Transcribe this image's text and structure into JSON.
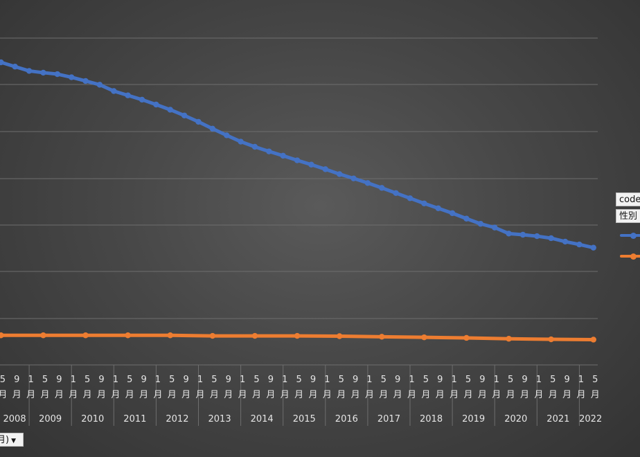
{
  "filter_buttons": {
    "code": "code",
    "sex": "性別",
    "date": "月)",
    "dropdown_icon": "chevron-down-icon"
  },
  "colors": {
    "series_blue": "#4472c4",
    "series_orange": "#ed7d31"
  },
  "chart_data": {
    "type": "line",
    "title": "",
    "xlabel": "",
    "ylabel": "",
    "grid": true,
    "x_axis": {
      "years": [
        "2008",
        "2009",
        "2010",
        "2011",
        "2012",
        "2013",
        "2014",
        "2015",
        "2016",
        "2017",
        "2018",
        "2019",
        "2020",
        "2021",
        "2022"
      ],
      "month_tick_labels": [
        "1",
        "5",
        "9"
      ],
      "month_unit": "月",
      "first_period": "2008-05",
      "last_period": "2022-05"
    },
    "series": [
      {
        "color": "#4472c4",
        "points": [
          [
            "2008-05",
            100
          ],
          [
            "2008-09",
            98.5
          ],
          [
            "2009-01",
            97
          ],
          [
            "2009-05",
            96.4
          ],
          [
            "2009-09",
            95.9
          ],
          [
            "2010-01",
            94.8
          ],
          [
            "2010-05",
            93.5
          ],
          [
            "2010-09",
            92.2
          ],
          [
            "2011-01",
            90
          ],
          [
            "2011-05",
            88.5
          ],
          [
            "2011-09",
            87
          ],
          [
            "2012-01",
            85.3
          ],
          [
            "2012-05",
            83.5
          ],
          [
            "2012-09",
            81.5
          ],
          [
            "2013-01",
            79.3
          ],
          [
            "2013-05",
            76.9
          ],
          [
            "2013-09",
            74.6
          ],
          [
            "2014-01",
            72.4
          ],
          [
            "2014-05",
            70.6
          ],
          [
            "2014-09",
            69
          ],
          [
            "2015-01",
            67.5
          ],
          [
            "2015-05",
            65.9
          ],
          [
            "2015-09",
            64.4
          ],
          [
            "2016-01",
            62.8
          ],
          [
            "2016-05",
            61.1
          ],
          [
            "2016-09",
            59.6
          ],
          [
            "2017-01",
            58
          ],
          [
            "2017-05",
            56.3
          ],
          [
            "2017-09",
            54.5
          ],
          [
            "2018-01",
            52.7
          ],
          [
            "2018-05",
            50.9
          ],
          [
            "2018-09",
            49.2
          ],
          [
            "2019-01",
            47.5
          ],
          [
            "2019-05",
            45.6
          ],
          [
            "2019-09",
            43.8
          ],
          [
            "2020-01",
            42.5
          ],
          [
            "2020-05",
            40.4
          ],
          [
            "2020-09",
            40
          ],
          [
            "2021-01",
            39.5
          ],
          [
            "2021-05",
            38.8
          ],
          [
            "2021-09",
            37.6
          ],
          [
            "2022-01",
            36.6
          ],
          [
            "2022-05",
            35.5
          ]
        ]
      },
      {
        "color": "#ed7d31",
        "points": [
          [
            "2008-05",
            5
          ],
          [
            "2009-05",
            5
          ],
          [
            "2010-05",
            5
          ],
          [
            "2011-05",
            5
          ],
          [
            "2012-05",
            5
          ],
          [
            "2013-05",
            4.8
          ],
          [
            "2014-05",
            4.8
          ],
          [
            "2015-05",
            4.8
          ],
          [
            "2016-05",
            4.7
          ],
          [
            "2017-05",
            4.5
          ],
          [
            "2018-05",
            4.3
          ],
          [
            "2019-05",
            4.1
          ],
          [
            "2020-05",
            3.8
          ],
          [
            "2021-05",
            3.6
          ],
          [
            "2022-05",
            3.5
          ]
        ]
      }
    ]
  }
}
